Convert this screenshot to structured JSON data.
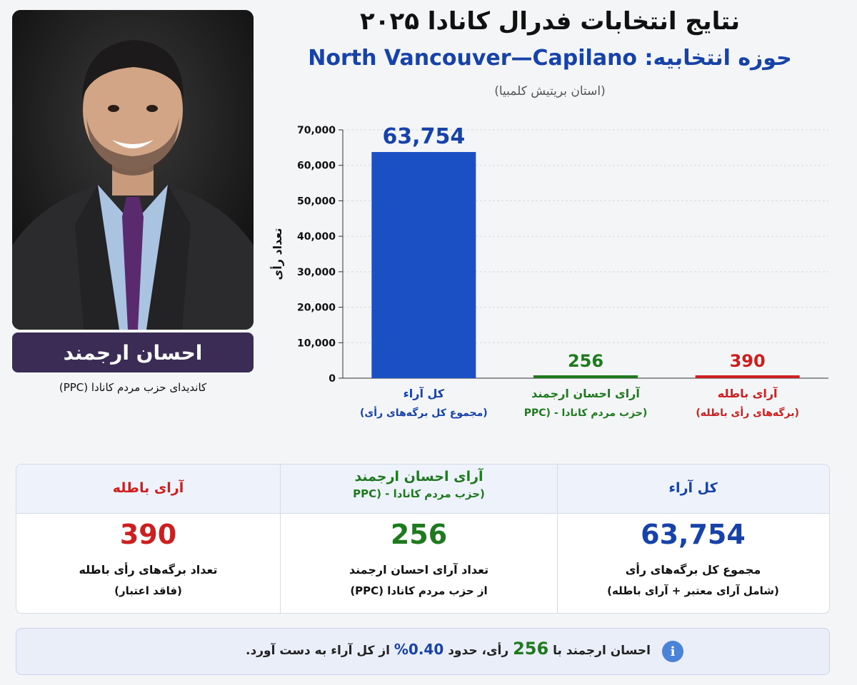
{
  "header": {
    "title": "نتایج انتخابات فدرال کانادا ۲۰۲۵",
    "riding": "حوزه انتخابیه: North Vancouver—Capilano",
    "province": "(استان بریتیش کلمبیا)"
  },
  "candidate": {
    "name": "احسان ارجمند",
    "subtitle": "کاندیدای حزب مردم کانادا (PPC)"
  },
  "colors": {
    "blue": "#1743a8",
    "green": "#1f7a1f",
    "red": "#cc1f1f",
    "bar_blue": "#1b4fc4"
  },
  "chart_data": {
    "type": "bar",
    "ylabel": "تعداد رأی",
    "ylim": [
      0,
      70000
    ],
    "yticks": [
      0,
      10000,
      20000,
      30000,
      40000,
      50000,
      60000,
      70000
    ],
    "ytick_labels": [
      "0",
      "10,000",
      "20,000",
      "30,000",
      "40,000",
      "50,000",
      "60,000",
      "70,000"
    ],
    "grid": true,
    "categories": [
      {
        "label": "کل آراء",
        "sub": "(مجموع کل برگه‌های رأی)",
        "value": 63754,
        "value_label": "63,754",
        "color": "#1b4fc4",
        "text_color": "#1743a8"
      },
      {
        "label": "آرای احسان ارجمند",
        "sub": "(حزب مردم کانادا - (PPC",
        "value": 256,
        "value_label": "256",
        "color": "#1f7a1f",
        "text_color": "#1f7a1f"
      },
      {
        "label": "آرای باطله",
        "sub": "(برگه‌های رأی باطله)",
        "value": 390,
        "value_label": "390",
        "color": "#cc1f1f",
        "text_color": "#cc1f1f"
      }
    ]
  },
  "summary": {
    "total": {
      "head": "کل آراء",
      "value": "63,754",
      "d1": "مجموع کل برگه‌های رأی",
      "d2": "(شامل آرای معتبر + آرای باطله)"
    },
    "candidate": {
      "head": "آرای احسان ارجمند",
      "head_sub": "(حزب مردم کانادا - (PPC",
      "value": "256",
      "d1": "تعداد آرای احسان ارجمند",
      "d2": "از حزب مردم کانادا (PPC)"
    },
    "invalid": {
      "head": "آرای باطله",
      "value": "390",
      "d1": "تعداد برگه‌های رأی باطله",
      "d2": "(فاقد اعتبار)"
    }
  },
  "note": {
    "icon": "info-icon",
    "icon_glyph": "i",
    "part1": "احسان ارجمند با",
    "votes": "256",
    "part2": "رأی، حدود",
    "percent": "0.40%",
    "part3": "از کل آراء به دست آورد."
  }
}
